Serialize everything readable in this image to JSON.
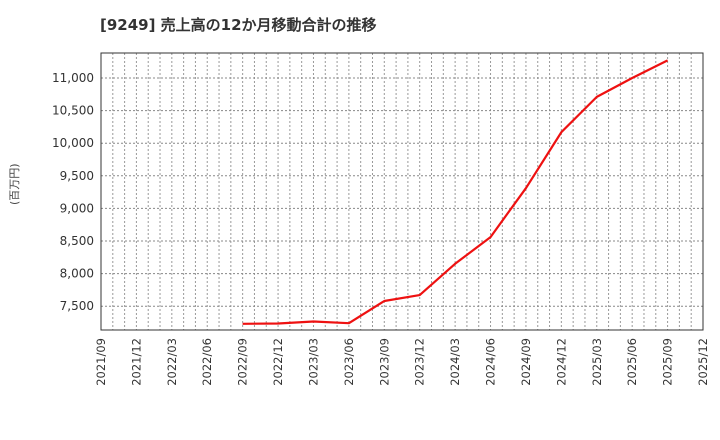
{
  "title": "[9249]  売上高の12か月移動合計の推移",
  "chart_data": {
    "type": "line",
    "title": "[9249] 売上高の12か月移動合計の推移",
    "xlabel": "",
    "ylabel": "(百万円)",
    "ylim": [
      7120,
      11380
    ],
    "grid": true,
    "legend": null,
    "x_ticks": [
      "2021/09",
      "2021/12",
      "2022/03",
      "2022/06",
      "2022/09",
      "2022/12",
      "2023/03",
      "2023/06",
      "2023/09",
      "2023/12",
      "2024/03",
      "2024/06",
      "2024/09",
      "2024/12",
      "2025/03",
      "2025/06",
      "2025/09",
      "2025/12"
    ],
    "y_ticks": [
      7500,
      8000,
      8500,
      9000,
      9500,
      10000,
      10500,
      11000
    ],
    "y_tick_labels": [
      "7,500",
      "8,000",
      "8,500",
      "9,000",
      "9,500",
      "10,000",
      "10,500",
      "11,000"
    ],
    "series": [
      {
        "name": "売上高(12か月移動合計)",
        "color": "#ee1111",
        "x": [
          "2022/09",
          "2022/12",
          "2023/03",
          "2023/06",
          "2023/09",
          "2023/12",
          "2024/03",
          "2024/06",
          "2024/09",
          "2024/12",
          "2025/03",
          "2025/06",
          "2025/09"
        ],
        "values": [
          7230,
          7235,
          7265,
          7240,
          7580,
          7670,
          8150,
          8560,
          9310,
          10170,
          10710,
          11000,
          11270
        ]
      }
    ]
  }
}
